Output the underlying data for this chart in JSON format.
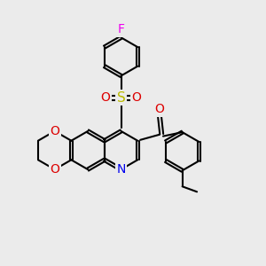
{
  "bg_color": "#ebebeb",
  "bond_color": "#000000",
  "bond_width": 1.5,
  "atom_colors": {
    "F": "#ee00ee",
    "O": "#dd0000",
    "S": "#bbbb00",
    "N": "#0000ee",
    "C": "#000000"
  },
  "font_size": 9,
  "rbl": 0.7
}
